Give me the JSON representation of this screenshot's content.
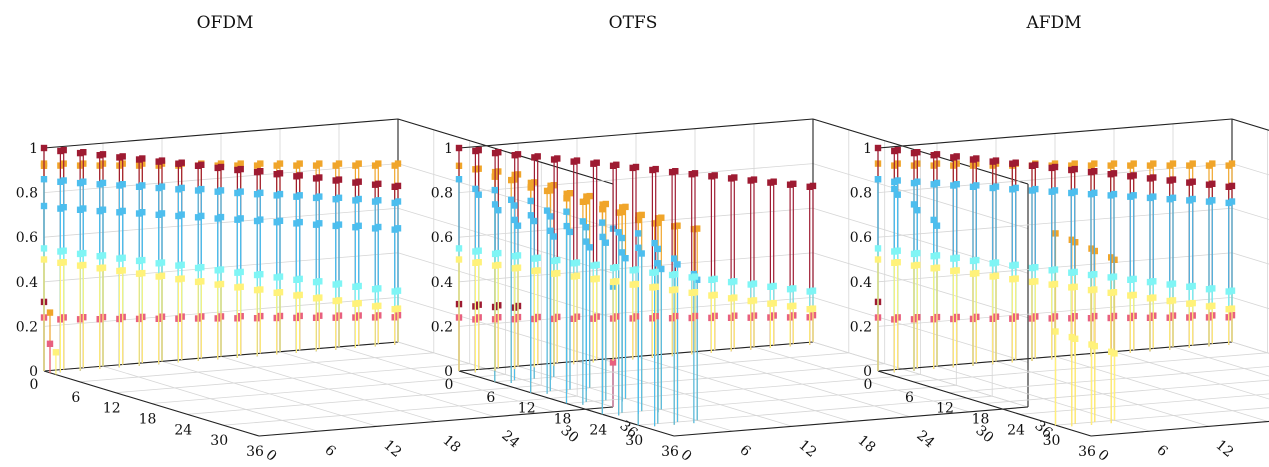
{
  "figure": {
    "background": "#ffffff"
  },
  "chart_data": [
    {
      "type": "stem3",
      "title": "OFDM",
      "xlabel": "",
      "ylabel": "",
      "zlabel": "",
      "xlim": [
        0,
        36
      ],
      "ylim": [
        0,
        36
      ],
      "zlim": [
        0,
        1
      ],
      "x_ticks": [
        "0",
        "6",
        "12",
        "18",
        "24",
        "30",
        "36"
      ],
      "y_ticks": [
        "0",
        "6",
        "12",
        "18",
        "24",
        "30",
        "36"
      ],
      "z_ticks": [
        "0",
        "0.2",
        "0.4",
        "0.6",
        "0.8",
        "1"
      ],
      "grid": true,
      "series": [
        {
          "color": "#F0A52A",
          "lines": [
            {
              "x": 0,
              "y0": 0,
              "y1": 36,
              "z0": 0.93,
              "z1": 0.8
            }
          ],
          "points": [
            {
              "x": 0,
              "y": 0,
              "z": 0.92
            },
            {
              "x": 1,
              "y": 0,
              "z": 0.27
            }
          ]
        },
        {
          "color": "#9E1B32",
          "lines": [
            {
              "x": 0,
              "y0": 0,
              "y1": 36,
              "z0": 1.0,
              "z1": 0.7
            }
          ],
          "points": [
            {
              "x": 0,
              "y": 0,
              "z": 0.31
            }
          ]
        },
        {
          "color": "#4DBEEE",
          "lines": [
            {
              "x": 0,
              "y0": 0,
              "y1": 36,
              "z0": 0.86,
              "z1": 0.63
            },
            {
              "x": 0,
              "y0": 0,
              "y1": 36,
              "z0": 0.74,
              "z1": 0.51
            }
          ],
          "points": [
            {
              "x": 36,
              "y": 36,
              "z": 0.8
            },
            {
              "x": 36,
              "y": 36,
              "z": 0.54
            }
          ]
        },
        {
          "color": "#7FF5F5",
          "lines": [
            {
              "x": 0,
              "y0": 0,
              "y1": 36,
              "z0": 0.55,
              "z1": 0.23
            }
          ],
          "points": [
            {
              "x": 36,
              "y": 36,
              "z": 0.2
            }
          ]
        },
        {
          "color": "#E8607F",
          "lines": [
            {
              "x": 0,
              "y0": 0,
              "y1": 36,
              "z0": 0.24,
              "z1": 0.12
            }
          ],
          "points": [
            {
              "x": 1,
              "y": 0,
              "z": 0.13
            },
            {
              "x": 36,
              "y": 36,
              "z": 0.2
            }
          ]
        },
        {
          "color": "#FFF27A",
          "lines": [
            {
              "x": 0,
              "y0": 0,
              "y1": 36,
              "z0": 0.5,
              "z1": 0.15
            }
          ],
          "points": [
            {
              "x": 2,
              "y": 0,
              "z": 0.1
            }
          ]
        }
      ]
    },
    {
      "type": "stem3",
      "title": "OTFS",
      "xlabel": "",
      "ylabel": "",
      "zlabel": "",
      "xlim": [
        0,
        36
      ],
      "ylim": [
        0,
        36
      ],
      "zlim": [
        0,
        1
      ],
      "x_ticks": [
        "0",
        "6",
        "12",
        "18",
        "24",
        "30",
        "36"
      ],
      "y_ticks": [
        "0",
        "6",
        "12",
        "18",
        "24",
        "30",
        "36"
      ],
      "z_ticks": [
        "0",
        "0.2",
        "0.4",
        "0.6",
        "0.8",
        "1"
      ],
      "grid": true,
      "series": [
        {
          "color": "#F0A52A",
          "lines": [
            {
              "x": 0,
              "y0": 0,
              "y1": 6,
              "z0": 0.92,
              "z1": 0.86
            },
            {
              "x": 6,
              "y0": 0,
              "y1": 6,
              "z0": 0.92,
              "z1": 0.86
            },
            {
              "x": 12,
              "y0": 0,
              "y1": 6,
              "z0": 0.92,
              "z1": 0.86
            },
            {
              "x": 18,
              "y0": 0,
              "y1": 6,
              "z0": 0.92,
              "z1": 0.86
            },
            {
              "x": 24,
              "y0": 0,
              "y1": 6,
              "z0": 0.92,
              "z1": 0.86
            },
            {
              "x": 30,
              "y0": 0,
              "y1": 6,
              "z0": 0.92,
              "z1": 0.86
            }
          ]
        },
        {
          "color": "#9E1B32",
          "lines": [
            {
              "x": 0,
              "y0": 0,
              "y1": 36,
              "z0": 1.0,
              "z1": 0.7
            },
            {
              "x": 0,
              "y0": 0,
              "y1": 6,
              "z0": 0.3,
              "z1": 0.27
            }
          ]
        },
        {
          "color": "#4DBEEE",
          "lines": [
            {
              "x": 0,
              "y0": 0,
              "y1": 6,
              "z0": 0.86,
              "z1": 0.63
            },
            {
              "x": 6,
              "y0": 0,
              "y1": 6,
              "z0": 0.86,
              "z1": 0.63
            },
            {
              "x": 12,
              "y0": 0,
              "y1": 6,
              "z0": 0.86,
              "z1": 0.63
            },
            {
              "x": 18,
              "y0": 0,
              "y1": 6,
              "z0": 0.86,
              "z1": 0.63
            },
            {
              "x": 24,
              "y0": 0,
              "y1": 6,
              "z0": 0.86,
              "z1": 0.63
            },
            {
              "x": 30,
              "y0": 0,
              "y1": 6,
              "z0": 0.86,
              "z1": 0.63
            }
          ]
        },
        {
          "color": "#7FF5F5",
          "lines": [
            {
              "x": 0,
              "y0": 0,
              "y1": 36,
              "z0": 0.55,
              "z1": 0.23
            }
          ]
        },
        {
          "color": "#E8607F",
          "lines": [
            {
              "x": 0,
              "y0": 0,
              "y1": 36,
              "z0": 0.24,
              "z1": 0.12
            }
          ]
        },
        {
          "color": "#FFF27A",
          "lines": [
            {
              "x": 0,
              "y0": 0,
              "y1": 36,
              "z0": 0.5,
              "z1": 0.15
            }
          ]
        }
      ]
    },
    {
      "type": "stem3",
      "title": "AFDM",
      "xlabel": "",
      "ylabel": "",
      "zlabel": "",
      "xlim": [
        0,
        36
      ],
      "ylim": [
        0,
        36
      ],
      "zlim": [
        0,
        1
      ],
      "x_ticks": [
        "0",
        "6",
        "12",
        "18",
        "24",
        "30",
        "36"
      ],
      "y_ticks": [
        "0",
        "6",
        "12",
        "18",
        "24",
        "30",
        "36"
      ],
      "z_ticks": [
        "0",
        "0.2",
        "0.4",
        "0.6",
        "0.8",
        "1"
      ],
      "grid": true,
      "series": [
        {
          "color": "#F0A52A",
          "lines": [
            {
              "x": 0,
              "y0": 0,
              "y1": 36,
              "z0": 0.93,
              "z1": 0.8
            },
            {
              "x": 30,
              "y0": 0,
              "y1": 6,
              "z0": 0.86,
              "z1": 0.72
            }
          ]
        },
        {
          "color": "#9E1B32",
          "lines": [
            {
              "x": 0,
              "y0": 0,
              "y1": 36,
              "z0": 1.0,
              "z1": 0.7
            }
          ],
          "points": [
            {
              "x": 0,
              "y": 0,
              "z": 0.31
            },
            {
              "x": 36,
              "y": 36,
              "z": 0.31
            }
          ]
        },
        {
          "color": "#4DBEEE",
          "lines": [
            {
              "x": 0,
              "y0": 0,
              "y1": 36,
              "z0": 0.86,
              "z1": 0.63
            },
            {
              "x": 0,
              "y0": 0,
              "y1": 6,
              "z0": 0.86,
              "z1": 0.63
            }
          ]
        },
        {
          "color": "#7FF5F5",
          "lines": [
            {
              "x": 0,
              "y0": 0,
              "y1": 36,
              "z0": 0.55,
              "z1": 0.23
            }
          ]
        },
        {
          "color": "#E8607F",
          "lines": [
            {
              "x": 0,
              "y0": 0,
              "y1": 36,
              "z0": 0.24,
              "z1": 0.12
            }
          ]
        },
        {
          "color": "#FFF27A",
          "lines": [
            {
              "x": 0,
              "y0": 0,
              "y1": 36,
              "z0": 0.5,
              "z1": 0.15
            },
            {
              "x": 30,
              "y0": 0,
              "y1": 6,
              "z0": 0.42,
              "z1": 0.3
            }
          ]
        }
      ]
    }
  ]
}
